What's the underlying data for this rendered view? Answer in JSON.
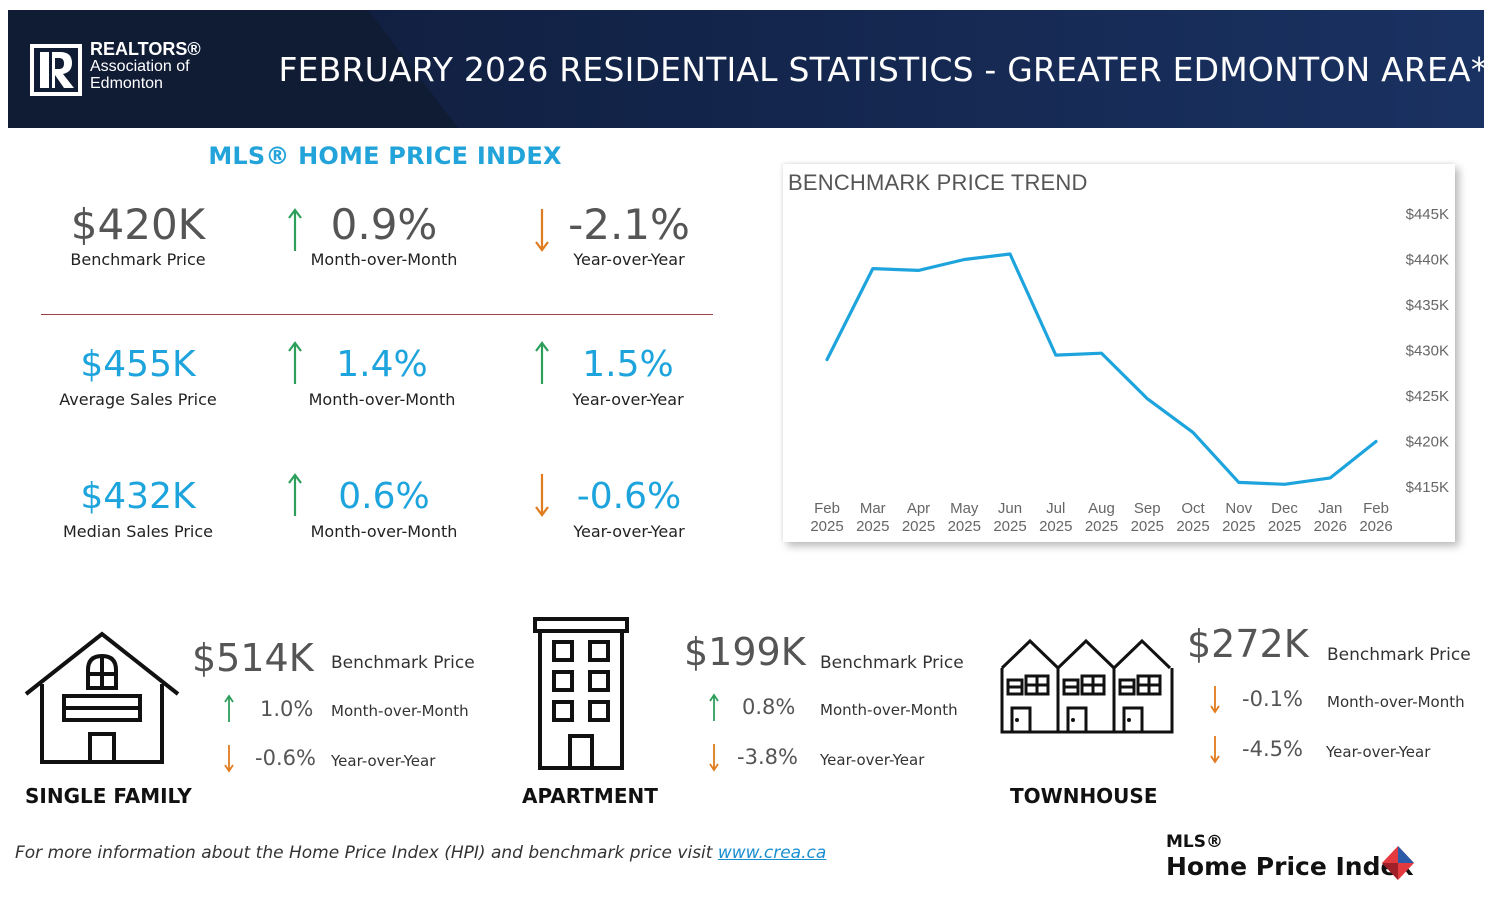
{
  "header": {
    "logo_line1": "REALTORS®",
    "logo_line2": "Association of",
    "logo_line3": "Edmonton",
    "title": "FEBRUARY 2026 RESIDENTIAL STATISTICS - GREATER EDMONTON AREA*",
    "colors": {
      "background": "#13244a",
      "text": "#ffffff"
    }
  },
  "hpi": {
    "title": "MLS® HOME PRICE INDEX",
    "rows": [
      {
        "value": "$420K",
        "label": "Benchmark Price",
        "mom": {
          "value": "0.9%",
          "label": "Month-over-Month",
          "direction": "up"
        },
        "yoy": {
          "value": "-2.1%",
          "label": "Year-over-Year",
          "direction": "down"
        }
      },
      {
        "value": "$455K",
        "label": "Average Sales Price",
        "mom": {
          "value": "1.4%",
          "label": "Month-over-Month",
          "direction": "up"
        },
        "yoy": {
          "value": "1.5%",
          "label": "Year-over-Year",
          "direction": "up"
        }
      },
      {
        "value": "$432K",
        "label": "Median Sales Price",
        "mom": {
          "value": "0.6%",
          "label": "Month-over-Month",
          "direction": "up"
        },
        "yoy": {
          "value": "-0.6%",
          "label": "Year-over-Year",
          "direction": "down"
        }
      }
    ],
    "colors": {
      "up_arrow": "#2e9e5b",
      "down_arrow": "#e07b1f",
      "accent": "#1ea4dd"
    }
  },
  "chart_data": {
    "type": "line",
    "title": "BENCHMARK PRICE TREND",
    "categories": [
      "Feb 2025",
      "Mar 2025",
      "Apr 2025",
      "May 2025",
      "Jun 2025",
      "Jul 2025",
      "Aug 2025",
      "Sep 2025",
      "Oct 2025",
      "Nov 2025",
      "Dec 2025",
      "Jan 2026",
      "Feb 2026"
    ],
    "category_lines": [
      [
        "Feb",
        "2025"
      ],
      [
        "Mar",
        "2025"
      ],
      [
        "Apr",
        "2025"
      ],
      [
        "May",
        "2025"
      ],
      [
        "Jun",
        "2025"
      ],
      [
        "Jul",
        "2025"
      ],
      [
        "Aug",
        "2025"
      ],
      [
        "Sep",
        "2025"
      ],
      [
        "Oct",
        "2025"
      ],
      [
        "Nov",
        "2025"
      ],
      [
        "Dec",
        "2025"
      ],
      [
        "Jan",
        "2026"
      ],
      [
        "Feb",
        "2026"
      ]
    ],
    "values": [
      429000,
      439000,
      438800,
      440000,
      440600,
      429500,
      429700,
      424700,
      421000,
      415500,
      415300,
      416000,
      420000
    ],
    "y_axis_position": "right",
    "yticks": [
      415000,
      420000,
      425000,
      430000,
      435000,
      440000,
      445000
    ],
    "ytick_labels": [
      "$415K",
      "$420K",
      "$425K",
      "$430K",
      "$435K",
      "$440K",
      "$445K"
    ],
    "ylim": [
      415000,
      445000
    ],
    "grid": false,
    "line_color": "#1ea4dd"
  },
  "property_types": [
    {
      "name": "SINGLE FAMILY",
      "icon": "house-icon",
      "price": "$514K",
      "price_label": "Benchmark Price",
      "mom": {
        "value": "1.0%",
        "label": "Month-over-Month",
        "direction": "up"
      },
      "yoy": {
        "value": "-0.6%",
        "label": "Year-over-Year",
        "direction": "down"
      }
    },
    {
      "name": "APARTMENT",
      "icon": "apartment-building-icon",
      "price": "$199K",
      "price_label": "Benchmark Price",
      "mom": {
        "value": "0.8%",
        "label": "Month-over-Month",
        "direction": "up"
      },
      "yoy": {
        "value": "-3.8%",
        "label": "Year-over-Year",
        "direction": "down"
      }
    },
    {
      "name": "TOWNHOUSE",
      "icon": "townhouse-icon",
      "price": "$272K",
      "price_label": "Benchmark Price",
      "mom": {
        "value": "-0.1%",
        "label": "Month-over-Month",
        "direction": "down"
      },
      "yoy": {
        "value": "-4.5%",
        "label": "Year-over-Year",
        "direction": "down"
      }
    }
  ],
  "footer": {
    "note": "For more information about the Home Price Index (HPI) and benchmark price visit",
    "link_text": "www.crea.ca",
    "mls_line1": "MLS®",
    "mls_line2": "Home Price Index"
  }
}
